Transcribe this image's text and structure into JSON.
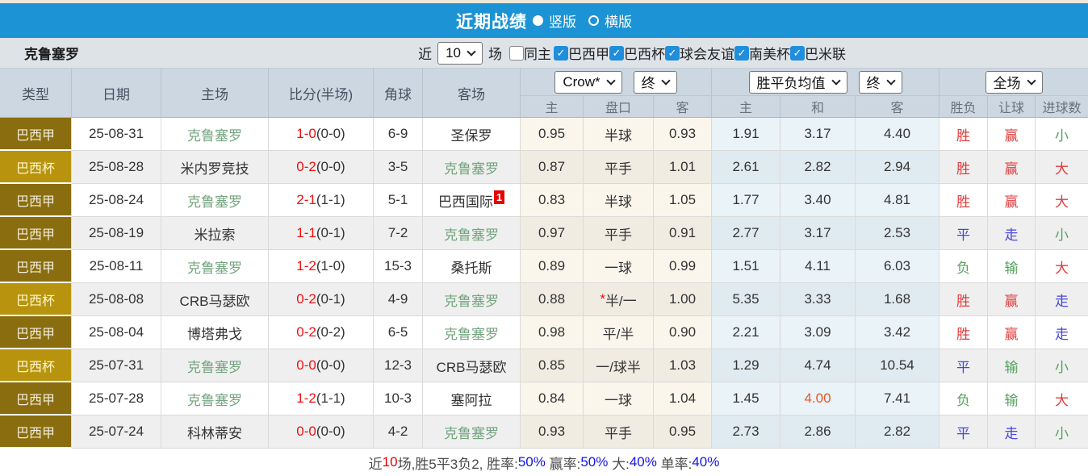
{
  "colors": {
    "bar_blue": "#1b93d4",
    "type_league_bg": "#8a6d0e",
    "type_cup_bg": "#b8940e",
    "team_green": "#74a57f",
    "score_red": "#ee1111",
    "result_red": "#e23c3c",
    "result_blue": "#4646dd",
    "result_green": "#55a060",
    "highlight_orange": "#ee5522"
  },
  "title_bar": {
    "title": "近期战绩",
    "layout_options": [
      {
        "label": "竖版",
        "selected": true
      },
      {
        "label": "横版",
        "selected": false
      }
    ]
  },
  "filter": {
    "team": "克鲁塞罗",
    "near_label": "近",
    "count": "10",
    "matches_label": "场",
    "same_home": {
      "label": "同主",
      "checked": false
    },
    "leagues": [
      {
        "label": "巴西甲",
        "checked": true
      },
      {
        "label": "巴西杯",
        "checked": true
      },
      {
        "label": "球会友谊",
        "checked": true
      },
      {
        "label": "南美杯",
        "checked": true
      },
      {
        "label": "巴米联",
        "checked": true
      }
    ]
  },
  "table": {
    "left_headers": [
      "类型",
      "日期",
      "主场",
      "比分(半场)",
      "角球",
      "客场"
    ],
    "dropdowns": {
      "bookmaker": "Crow*",
      "bookmaker_time": "终",
      "avg": "胜平负均值",
      "avg_time": "终",
      "scope": "全场"
    },
    "sub_headers": [
      "主",
      "盘口",
      "客",
      "主",
      "和",
      "客",
      "胜负",
      "让球",
      "进球数"
    ],
    "result_color_map": {
      "胜": "red",
      "赢": "red",
      "大": "red",
      "平": "blue",
      "走": "blue",
      "负": "green",
      "输": "green",
      "小": "green"
    },
    "rows": [
      {
        "type": "巴西甲",
        "date": "25-08-31",
        "home": "克鲁塞罗",
        "score_ft": "1-0",
        "score_ht": "(0-0)",
        "corners": "6-9",
        "away": "圣保罗",
        "odds_home": "0.95",
        "handicap": "半球",
        "odds_away": "0.93",
        "avg_win": "1.91",
        "avg_draw": "3.17",
        "avg_lose": "4.40",
        "res_outcome": "胜",
        "res_handicap": "赢",
        "res_goals": "小"
      },
      {
        "type": "巴西杯",
        "date": "25-08-28",
        "home": "米内罗竞技",
        "score_ft": "0-2",
        "score_ht": "(0-0)",
        "corners": "3-5",
        "away": "克鲁塞罗",
        "odds_home": "0.87",
        "handicap": "平手",
        "odds_away": "1.01",
        "avg_win": "2.61",
        "avg_draw": "2.82",
        "avg_lose": "2.94",
        "res_outcome": "胜",
        "res_handicap": "赢",
        "res_goals": "大"
      },
      {
        "type": "巴西甲",
        "date": "25-08-24",
        "home": "克鲁塞罗",
        "score_ft": "2-1",
        "score_ht": "(1-1)",
        "corners": "5-1",
        "away": "巴西国际",
        "away_badge": "1",
        "odds_home": "0.83",
        "handicap": "半球",
        "odds_away": "1.05",
        "avg_win": "1.77",
        "avg_draw": "3.40",
        "avg_lose": "4.81",
        "res_outcome": "胜",
        "res_handicap": "赢",
        "res_goals": "大"
      },
      {
        "type": "巴西甲",
        "date": "25-08-19",
        "home": "米拉索",
        "score_ft": "1-1",
        "score_ht": "(0-1)",
        "corners": "7-2",
        "away": "克鲁塞罗",
        "odds_home": "0.97",
        "handicap": "平手",
        "odds_away": "0.91",
        "avg_win": "2.77",
        "avg_draw": "3.17",
        "avg_lose": "2.53",
        "res_outcome": "平",
        "res_handicap": "走",
        "res_goals": "小"
      },
      {
        "type": "巴西甲",
        "date": "25-08-11",
        "home": "克鲁塞罗",
        "score_ft": "1-2",
        "score_ht": "(1-0)",
        "corners": "15-3",
        "away": "桑托斯",
        "odds_home": "0.89",
        "handicap": "一球",
        "odds_away": "0.99",
        "avg_win": "1.51",
        "avg_draw": "4.11",
        "avg_lose": "6.03",
        "res_outcome": "负",
        "res_handicap": "输",
        "res_goals": "大"
      },
      {
        "type": "巴西杯",
        "date": "25-08-08",
        "home": "CRB马瑟欧",
        "score_ft": "0-2",
        "score_ht": "(0-1)",
        "corners": "4-9",
        "away": "克鲁塞罗",
        "odds_home": "0.88",
        "handicap": "半/一",
        "handicap_star": true,
        "odds_away": "1.00",
        "avg_win": "5.35",
        "avg_draw": "3.33",
        "avg_lose": "1.68",
        "res_outcome": "胜",
        "res_handicap": "赢",
        "res_goals": "走"
      },
      {
        "type": "巴西甲",
        "date": "25-08-04",
        "home": "博塔弗戈",
        "score_ft": "0-2",
        "score_ht": "(0-2)",
        "corners": "6-5",
        "away": "克鲁塞罗",
        "odds_home": "0.98",
        "handicap": "平/半",
        "odds_away": "0.90",
        "avg_win": "2.21",
        "avg_draw": "3.09",
        "avg_lose": "3.42",
        "res_outcome": "胜",
        "res_handicap": "赢",
        "res_goals": "走"
      },
      {
        "type": "巴西杯",
        "date": "25-07-31",
        "home": "克鲁塞罗",
        "score_ft": "0-0",
        "score_ht": "(0-0)",
        "corners": "12-3",
        "away": "CRB马瑟欧",
        "odds_home": "0.85",
        "handicap": "一/球半",
        "odds_away": "1.03",
        "avg_win": "1.29",
        "avg_draw": "4.74",
        "avg_lose": "10.54",
        "res_outcome": "平",
        "res_handicap": "输",
        "res_goals": "小"
      },
      {
        "type": "巴西甲",
        "date": "25-07-28",
        "home": "克鲁塞罗",
        "score_ft": "1-2",
        "score_ht": "(1-1)",
        "corners": "10-3",
        "away": "塞阿拉",
        "odds_home": "0.84",
        "handicap": "一球",
        "odds_away": "1.04",
        "avg_win": "1.45",
        "avg_draw": "4.00",
        "avg_draw_hot": true,
        "avg_lose": "7.41",
        "res_outcome": "负",
        "res_handicap": "输",
        "res_goals": "大"
      },
      {
        "type": "巴西甲",
        "date": "25-07-24",
        "home": "科林蒂安",
        "score_ft": "0-0",
        "score_ht": "(0-0)",
        "corners": "4-2",
        "away": "克鲁塞罗",
        "odds_home": "0.93",
        "handicap": "平手",
        "odds_away": "0.95",
        "avg_win": "2.73",
        "avg_draw": "2.86",
        "avg_lose": "2.82",
        "res_outcome": "平",
        "res_handicap": "走",
        "res_goals": "小"
      }
    ]
  },
  "footer": {
    "segments": [
      {
        "text": "近",
        "color": "dark"
      },
      {
        "text": "10",
        "color": "red"
      },
      {
        "text": "场,胜5平3负2, 胜率:",
        "color": "dark"
      },
      {
        "text": "50%",
        "color": "blue"
      },
      {
        "text": " 赢率:",
        "color": "dark"
      },
      {
        "text": "50%",
        "color": "blue"
      },
      {
        "text": " 大:",
        "color": "dark"
      },
      {
        "text": "40%",
        "color": "blue"
      },
      {
        "text": " 单率:",
        "color": "dark"
      },
      {
        "text": "40%",
        "color": "blue"
      }
    ]
  }
}
